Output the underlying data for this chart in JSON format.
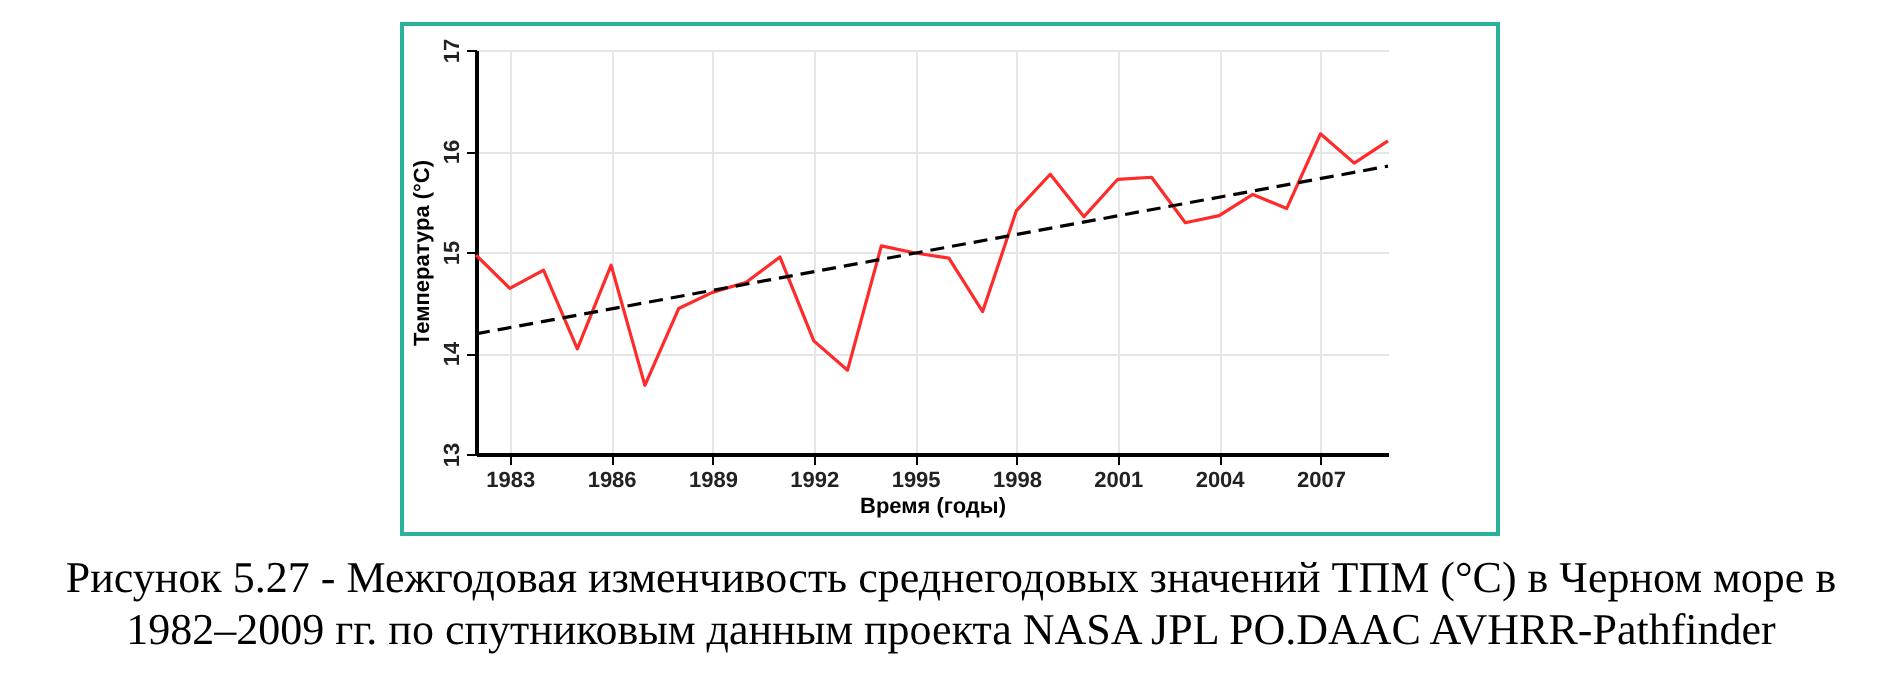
{
  "chart_data": {
    "type": "line",
    "xlabel": "Время (годы)",
    "ylabel": "Температура (°C)",
    "x": [
      1982,
      1983,
      1984,
      1985,
      1986,
      1987,
      1988,
      1989,
      1990,
      1991,
      1992,
      1993,
      1994,
      1995,
      1996,
      1997,
      1998,
      1999,
      2000,
      2001,
      2002,
      2003,
      2004,
      2005,
      2006,
      2007,
      2008,
      2009
    ],
    "series": [
      {
        "color": "#ff2a2a",
        "values": [
          14.97,
          14.64,
          14.82,
          14.04,
          14.87,
          13.68,
          14.44,
          14.6,
          14.7,
          14.95,
          14.12,
          13.83,
          15.06,
          14.99,
          14.94,
          14.41,
          15.41,
          15.77,
          15.35,
          15.72,
          15.74,
          15.29,
          15.36,
          15.57,
          15.43,
          16.17,
          15.88,
          16.1
        ]
      },
      {
        "type": "line",
        "color": "#000000",
        "line_style": "dashed",
        "x": [
          1982,
          2009
        ],
        "values": [
          14.19,
          15.85
        ]
      }
    ],
    "xlim": [
      1982,
      2009
    ],
    "xticks": [
      1983,
      1986,
      1989,
      1992,
      1995,
      1998,
      2001,
      2004,
      2007
    ],
    "ylim": [
      13,
      17
    ],
    "yticks": [
      13,
      14,
      15,
      16,
      17
    ],
    "grid": true,
    "annotations": [
      "Рисунок 5.27 - Межгодовая изменчивость среднегодовых значений ТПМ (°C) в Черном море в 1982–2009 гг. по спутниковым данным проекта NASA JPL PO.DAAC AVHRR-Pathfinder"
    ]
  }
}
